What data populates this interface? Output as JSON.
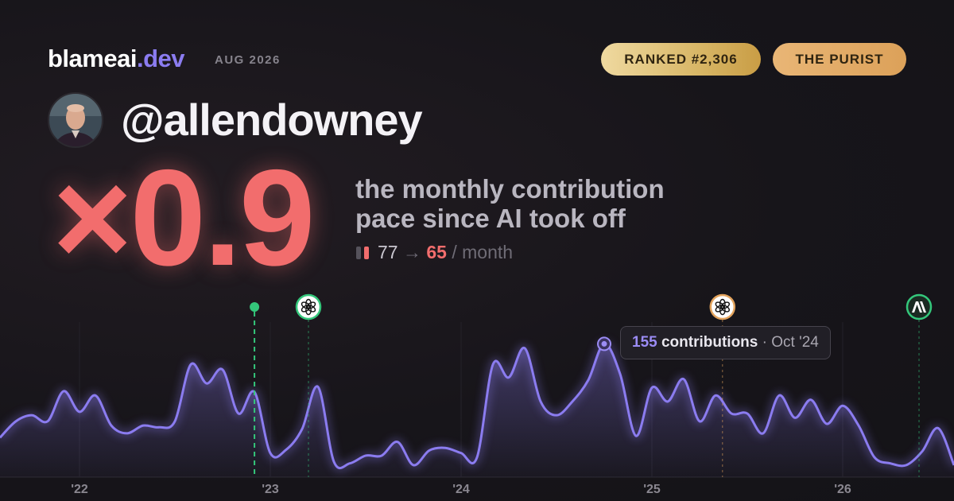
{
  "brand": {
    "name": "blameai",
    "tld": ".dev",
    "period": "AUG 2026"
  },
  "badges": [
    "RANKED #2,306",
    "THE PURIST"
  ],
  "handle": "@allendowney",
  "multiplier": "×0.9",
  "description": [
    "the monthly contribution",
    "pace since AI took off"
  ],
  "pace": {
    "from": 77,
    "arrow": "→",
    "to": 65,
    "unit": "/ month"
  },
  "tooltip": {
    "unit": "contributions",
    "separator": "·",
    "date": "Oct '24"
  },
  "chart_data": {
    "type": "area",
    "x": [
      2021.5833,
      2021.6667,
      2021.75,
      2021.8333,
      2021.9167,
      2022.0,
      2022.0833,
      2022.1667,
      2022.25,
      2022.3333,
      2022.4167,
      2022.5,
      2022.5833,
      2022.6667,
      2022.75,
      2022.8333,
      2022.9167,
      2023.0,
      2023.0833,
      2023.1667,
      2023.25,
      2023.3333,
      2023.4167,
      2023.5,
      2023.5833,
      2023.6667,
      2023.75,
      2023.8333,
      2023.9167,
      2024.0,
      2024.0833,
      2024.1667,
      2024.25,
      2024.3333,
      2024.4167,
      2024.5,
      2024.5833,
      2024.6667,
      2024.75,
      2024.8333,
      2024.9167,
      2025.0,
      2025.0833,
      2025.1667,
      2025.25,
      2025.3333,
      2025.4167,
      2025.5,
      2025.5833,
      2025.6667,
      2025.75,
      2025.8333,
      2025.9167,
      2026.0,
      2026.0833,
      2026.1667,
      2026.25,
      2026.3333,
      2026.4167,
      2026.5,
      2026.5833
    ],
    "series": [
      {
        "name": "contributions",
        "color": "#8b7cf0",
        "values": [
          46,
          65,
          72,
          65,
          100,
          76,
          95,
          60,
          51,
          60,
          58,
          65,
          131,
          109,
          125,
          74,
          99,
          28,
          32,
          56,
          105,
          18,
          16,
          25,
          25,
          41,
          14,
          31,
          34,
          28,
          23,
          131,
          116,
          150,
          88,
          72,
          88,
          113,
          155,
          120,
          48,
          104,
          88,
          114,
          65,
          95,
          74,
          74,
          51,
          95,
          69,
          90,
          62,
          83,
          60,
          23,
          16,
          14,
          30,
          57,
          14
        ]
      }
    ],
    "xlim": [
      2021.5833,
      2026.5833
    ],
    "ylim": [
      0,
      185
    ],
    "xticks": [
      {
        "value": 2022,
        "label": "'22"
      },
      {
        "value": 2023,
        "label": "'23"
      },
      {
        "value": 2024,
        "label": "'24"
      },
      {
        "value": 2025,
        "label": "'25"
      },
      {
        "value": 2026,
        "label": "'26"
      }
    ],
    "highlight": 38,
    "events": [
      {
        "x": 2022.917,
        "kind": "dot",
        "color": "#34c77b"
      },
      {
        "x": 2023.2,
        "kind": "openai",
        "color": "#34c77b"
      },
      {
        "x": 2025.37,
        "kind": "openai",
        "color": "#e3a35c"
      },
      {
        "x": 2026.4,
        "kind": "anthropic",
        "color": "#34c77b"
      }
    ]
  }
}
